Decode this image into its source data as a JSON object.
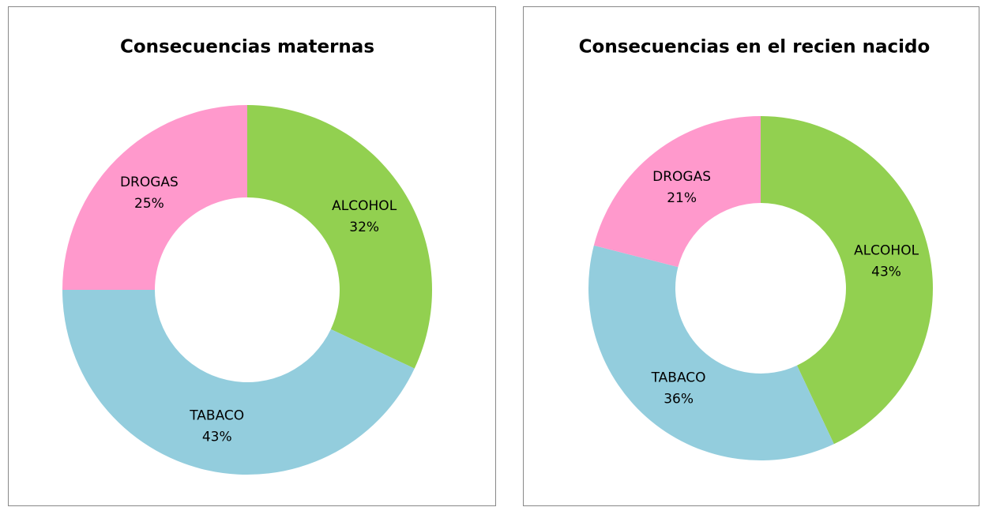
{
  "chart_data": [
    {
      "type": "donut",
      "title": "Consecuencias maternas",
      "categories": [
        "ALCOHOL",
        "TABACO",
        "DROGAS"
      ],
      "values": [
        32,
        43,
        25
      ],
      "value_labels": [
        "32%",
        "43%",
        "25%"
      ],
      "colors": [
        "#92d050",
        "#93cddd",
        "#ff99cc"
      ]
    },
    {
      "type": "donut",
      "title": "Consecuencias en el recien nacido",
      "categories": [
        "ALCOHOL",
        "TABACO",
        "DROGAS"
      ],
      "values": [
        43,
        36,
        21
      ],
      "value_labels": [
        "43%",
        "36%",
        "21%"
      ],
      "colors": [
        "#92d050",
        "#93cddd",
        "#ff99cc"
      ]
    }
  ]
}
